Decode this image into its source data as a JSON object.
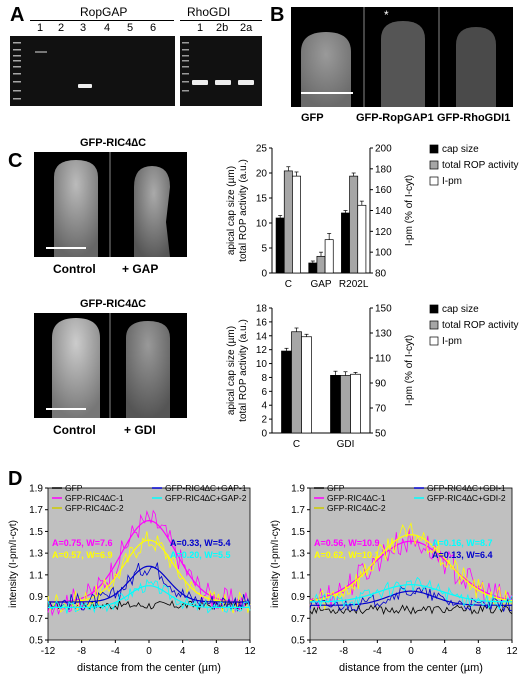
{
  "panels": {
    "a": "A",
    "b": "B",
    "c": "C",
    "d": "D"
  },
  "panel_a": {
    "group1_title": "RopGAP",
    "group1_lanes": [
      "1",
      "2",
      "3",
      "4",
      "5",
      "6"
    ],
    "group2_title": "RhoGDI",
    "group2_lanes": [
      "1",
      "2b",
      "2a"
    ]
  },
  "panel_b": {
    "captions": [
      "GFP",
      "GFP-RopGAP1",
      "GFP-RhoGDI1"
    ],
    "asterisk": "*"
  },
  "panel_c": {
    "title_top": "GFP-RIC4∆C",
    "title_bottom": "GFP-RIC4∆C",
    "top_captions": [
      "Control",
      "+ GAP"
    ],
    "bottom_captions": [
      "Control",
      "+ GDI"
    ]
  },
  "chart_data": [
    {
      "type": "bar",
      "categories": [
        "C",
        "GAP",
        "R202L"
      ],
      "series": [
        {
          "name": "cap size",
          "axis": "left",
          "values": [
            11,
            2,
            12
          ],
          "errors": [
            0.5,
            0.4,
            0.5
          ],
          "color": "#000000"
        },
        {
          "name": "total ROP activity",
          "axis": "right",
          "values": [
            178,
            96,
            173
          ],
          "errors": [
            4,
            4,
            3
          ],
          "color": "#a6a6a6"
        },
        {
          "name": "I-pm",
          "axis": "right",
          "values": [
            173,
            112,
            145
          ],
          "errors": [
            4,
            6,
            4
          ],
          "color": "#ffffff"
        }
      ],
      "ylabel_left": "apical cap size (µm)\ntotal ROP activity (a.u.)",
      "ylabel_right": "I-pm (% of I-cyt)",
      "ylim_left": [
        0,
        25
      ],
      "yticks_left": [
        0,
        5,
        10,
        15,
        20,
        25
      ],
      "ylim_right": [
        80,
        200
      ],
      "yticks_right": [
        80,
        100,
        120,
        140,
        160,
        180,
        200
      ],
      "legend": [
        "cap size",
        "total ROP activity",
        "I-pm"
      ]
    },
    {
      "type": "bar",
      "categories": [
        "C",
        "GDI"
      ],
      "series": [
        {
          "name": "cap size",
          "axis": "left",
          "values": [
            11.8,
            8.3
          ],
          "errors": [
            0.4,
            0.6
          ],
          "color": "#000000"
        },
        {
          "name": "total ROP activity",
          "axis": "right",
          "values": [
            131,
            96
          ],
          "errors": [
            3,
            3
          ],
          "color": "#a6a6a6"
        },
        {
          "name": "I-pm",
          "axis": "right",
          "values": [
            127,
            97
          ],
          "errors": [
            2,
            1.5
          ],
          "color": "#ffffff"
        }
      ],
      "ylabel_left": "apical cap size (µm)\ntotal ROP activity (a.u.)",
      "ylabel_right": "I-pm (% of I-cyt)",
      "ylim_left": [
        0,
        18
      ],
      "yticks_left": [
        0,
        2,
        4,
        6,
        8,
        10,
        12,
        14,
        16,
        18
      ],
      "ylim_right": [
        50,
        150
      ],
      "yticks_right": [
        50,
        70,
        90,
        110,
        130,
        150
      ],
      "legend": [
        "cap size",
        "total ROP activity",
        "I-pm"
      ]
    },
    {
      "type": "line",
      "title": "",
      "xlabel": "distance from the center (µm)",
      "ylabel": "intensity (I-pm/I-cyt)",
      "xlim": [
        -12,
        12
      ],
      "xticks": [
        -12,
        -8,
        -4,
        0,
        4,
        8,
        12
      ],
      "ylim": [
        0.5,
        1.9
      ],
      "yticks": [
        0.5,
        0.7,
        0.9,
        1.1,
        1.3,
        1.5,
        1.7,
        1.9
      ],
      "legend": [
        "GFP",
        "GFP-RIC4∆C-1",
        "GFP-RIC4∆C-2",
        "GFP-RIC4∆C+GAP-1",
        "GFP-RIC4∆C+GAP-2"
      ],
      "series": [
        {
          "name": "GFP",
          "color": "#000000",
          "base": 0.82,
          "amp": 0.0,
          "width": 6,
          "noise": 0.04
        },
        {
          "name": "GFP-RIC4∆C-1",
          "color": "#ff00ff",
          "base": 0.85,
          "amp": 0.75,
          "width": 7.6,
          "noise": 0.12
        },
        {
          "name": "GFP-RIC4∆C-2",
          "color": "#ffff00",
          "base": 0.85,
          "amp": 0.57,
          "width": 6.9,
          "noise": 0.1
        },
        {
          "name": "GFP-RIC4∆C+GAP-1",
          "color": "#0000cc",
          "base": 0.85,
          "amp": 0.33,
          "width": 5.4,
          "noise": 0.08
        },
        {
          "name": "GFP-RIC4∆C+GAP-2",
          "color": "#00ffff",
          "base": 0.8,
          "amp": 0.2,
          "width": 5.5,
          "noise": 0.06
        }
      ],
      "annotations": [
        {
          "text": "A=0.75, W=7.6",
          "color": "#ff00ff"
        },
        {
          "text": "A=0.57, W=6.9",
          "color": "#ffff00"
        },
        {
          "text": "A=0.33, W=5.4",
          "color": "#0000cc"
        },
        {
          "text": "A=0.20, W=5.5",
          "color": "#00ffff"
        }
      ]
    },
    {
      "type": "line",
      "title": "",
      "xlabel": "distance from the center (µm)",
      "ylabel": "intensity (I-pm/I-cyt)",
      "xlim": [
        -12,
        12
      ],
      "xticks": [
        -12,
        -8,
        -4,
        0,
        4,
        8,
        12
      ],
      "ylim": [
        0.5,
        1.9
      ],
      "yticks": [
        0.5,
        0.7,
        0.9,
        1.1,
        1.3,
        1.5,
        1.7,
        1.9
      ],
      "legend": [
        "GFP",
        "GFP-RIC4∆C-1",
        "GFP-RIC4∆C-2",
        "GFP-RIC4∆C+GDI-1",
        "GFP-RIC4∆C+GDI-2"
      ],
      "series": [
        {
          "name": "GFP",
          "color": "#000000",
          "base": 0.78,
          "amp": 0.0,
          "width": 6,
          "noise": 0.04
        },
        {
          "name": "GFP-RIC4∆C-1",
          "color": "#ff00ff",
          "base": 0.85,
          "amp": 0.56,
          "width": 10.9,
          "noise": 0.13
        },
        {
          "name": "GFP-RIC4∆C-2",
          "color": "#ffff00",
          "base": 0.85,
          "amp": 0.62,
          "width": 10.1,
          "noise": 0.11
        },
        {
          "name": "GFP-RIC4∆C+GDI-1",
          "color": "#0000cc",
          "base": 0.82,
          "amp": 0.13,
          "width": 6.4,
          "noise": 0.06
        },
        {
          "name": "GFP-RIC4∆C+GDI-2",
          "color": "#00ffff",
          "base": 0.85,
          "amp": 0.16,
          "width": 8.7,
          "noise": 0.07
        }
      ],
      "annotations": [
        {
          "text": "A=0.56, W=10.9",
          "color": "#ff00ff"
        },
        {
          "text": "A=0.62, W=10.1",
          "color": "#ffff00"
        },
        {
          "text": "A=0.16, W=8.7",
          "color": "#00ffff"
        },
        {
          "text": "A=0.13, W=6.4",
          "color": "#0000cc"
        }
      ]
    }
  ]
}
